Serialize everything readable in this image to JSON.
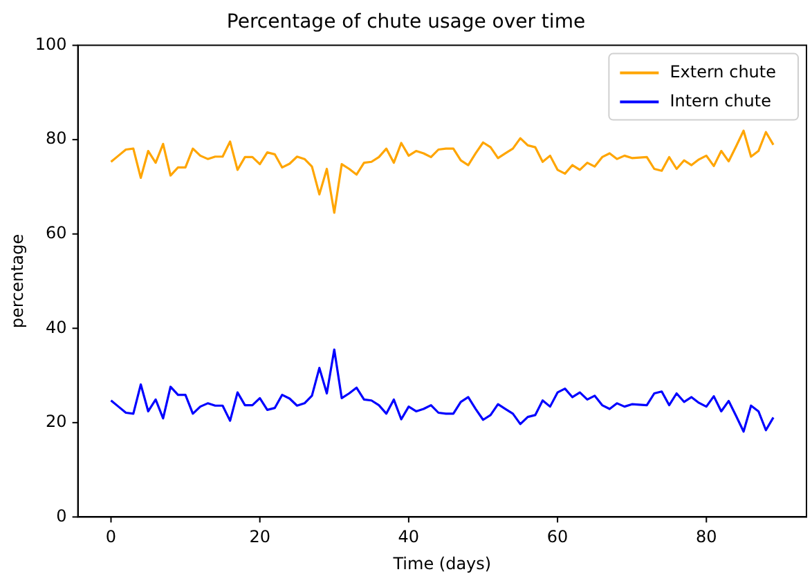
{
  "chart_data": {
    "type": "line",
    "title": "Percentage of chute usage over time",
    "xlabel": "Time (days)",
    "ylabel": "percentage",
    "x": [
      0,
      1,
      2,
      3,
      4,
      5,
      6,
      7,
      8,
      9,
      10,
      11,
      12,
      13,
      14,
      15,
      16,
      17,
      18,
      19,
      20,
      21,
      22,
      23,
      24,
      25,
      26,
      27,
      28,
      29,
      30,
      31,
      32,
      33,
      34,
      35,
      36,
      37,
      38,
      39,
      40,
      41,
      42,
      43,
      44,
      45,
      46,
      47,
      48,
      49,
      50,
      51,
      52,
      53,
      54,
      55,
      56,
      57,
      58,
      59,
      60,
      61,
      62,
      63,
      64,
      65,
      66,
      67,
      68,
      69,
      70,
      71,
      72,
      73,
      74,
      75,
      76,
      77,
      78,
      79,
      80,
      81,
      82,
      83,
      84,
      85,
      86,
      87,
      88,
      89
    ],
    "series": [
      {
        "name": "Extern chute",
        "color": "#ffa500",
        "values": [
          75.3,
          76.6,
          77.9,
          78.1,
          71.9,
          77.6,
          75.1,
          79.1,
          72.4,
          74.1,
          74.1,
          78.1,
          76.6,
          75.9,
          76.4,
          76.4,
          79.6,
          73.6,
          76.3,
          76.3,
          74.8,
          77.3,
          76.9,
          74.1,
          74.9,
          76.4,
          75.9,
          74.3,
          68.4,
          73.8,
          64.5,
          74.8,
          73.8,
          72.6,
          75.1,
          75.3,
          76.3,
          78.1,
          75.1,
          79.3,
          76.6,
          77.6,
          77.1,
          76.3,
          77.9,
          78.1,
          78.1,
          75.6,
          74.6,
          77.1,
          79.4,
          78.4,
          76.1,
          77.1,
          78.1,
          80.3,
          78.8,
          78.4,
          75.3,
          76.6,
          73.6,
          72.8,
          74.6,
          73.6,
          75.1,
          74.3,
          76.3,
          77.1,
          75.9,
          76.6,
          76.1,
          76.2,
          76.3,
          73.8,
          73.4,
          76.3,
          73.8,
          75.6,
          74.6,
          75.8,
          76.6,
          74.4,
          77.6,
          75.4,
          78.6,
          81.9,
          76.4,
          77.6,
          81.6,
          78.9
        ]
      },
      {
        "name": "Intern chute",
        "color": "#0000ff",
        "values": [
          24.7,
          23.4,
          22.1,
          21.9,
          28.1,
          22.4,
          24.9,
          20.9,
          27.6,
          25.9,
          25.9,
          21.9,
          23.4,
          24.1,
          23.6,
          23.6,
          20.4,
          26.4,
          23.7,
          23.7,
          25.2,
          22.7,
          23.1,
          25.9,
          25.1,
          23.6,
          24.1,
          25.7,
          31.6,
          26.2,
          35.5,
          25.2,
          26.2,
          27.4,
          24.9,
          24.7,
          23.7,
          21.9,
          24.9,
          20.7,
          23.4,
          22.4,
          22.9,
          23.7,
          22.1,
          21.9,
          21.9,
          24.4,
          25.4,
          22.9,
          20.6,
          21.6,
          23.9,
          22.9,
          21.9,
          19.7,
          21.2,
          21.6,
          24.7,
          23.4,
          26.4,
          27.2,
          25.4,
          26.4,
          24.9,
          25.7,
          23.7,
          22.9,
          24.1,
          23.4,
          23.9,
          23.8,
          23.7,
          26.2,
          26.6,
          23.7,
          26.2,
          24.4,
          25.4,
          24.2,
          23.4,
          25.6,
          22.4,
          24.6,
          21.4,
          18.1,
          23.6,
          22.4,
          18.4,
          21.1
        ]
      }
    ],
    "xlim": [
      -4.45,
      93.45
    ],
    "xticks": [
      0,
      20,
      40,
      60,
      80
    ],
    "ylim": [
      0,
      100
    ],
    "yticks": [
      0,
      20,
      40,
      60,
      80,
      100
    ],
    "legend": "top right",
    "grid": false
  }
}
